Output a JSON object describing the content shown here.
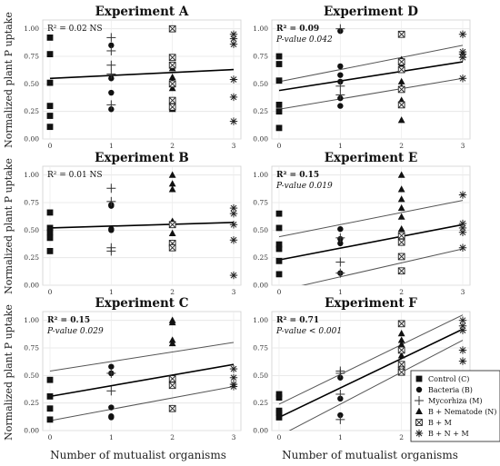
{
  "figure": {
    "ylabel": "Normalized plant P uptake",
    "xlabel": "Number of mutualist organisms",
    "legend": [
      {
        "key": "C",
        "label": "Control (C)"
      },
      {
        "key": "B",
        "label": "Bacteria (B)"
      },
      {
        "key": "M",
        "label": "Mycorhiza (M)"
      },
      {
        "key": "BN",
        "label": "B + Nematode (N)"
      },
      {
        "key": "BM",
        "label": "B + M"
      },
      {
        "key": "BNM",
        "label": "B + N + M"
      }
    ],
    "xticks": [
      "0",
      "1",
      "2",
      "3"
    ],
    "yticks": [
      "0.00",
      "0.25",
      "0.50",
      "0.75",
      "1.00"
    ]
  },
  "chart_data": [
    {
      "type": "scatter",
      "title": "Experiment A",
      "stats": {
        "r2_label": "R² = 0.02 NS",
        "r2_bold": false,
        "p_label": ""
      },
      "xlim": [
        0,
        3
      ],
      "ylim": [
        0,
        1.08
      ],
      "fit": {
        "start": 0.55,
        "end": 0.63
      },
      "ci": null,
      "series": [
        {
          "key": "C",
          "points": [
            [
              0,
              0.92
            ],
            [
              0,
              0.77
            ],
            [
              0,
              0.51
            ],
            [
              0,
              0.3
            ],
            [
              0,
              0.21
            ],
            [
              0,
              0.11
            ]
          ]
        },
        {
          "key": "B",
          "points": [
            [
              1,
              0.85
            ],
            [
              1,
              0.55
            ],
            [
              1,
              0.42
            ],
            [
              1,
              0.27
            ]
          ]
        },
        {
          "key": "M",
          "points": [
            [
              1,
              0.92
            ],
            [
              1,
              0.8
            ],
            [
              1,
              0.67
            ],
            [
              1,
              0.59
            ],
            [
              1,
              0.31
            ]
          ]
        },
        {
          "key": "BN",
          "points": [
            [
              2,
              0.64
            ],
            [
              2,
              0.56
            ],
            [
              2,
              0.52
            ],
            [
              2,
              0.46
            ],
            [
              2,
              0.3
            ],
            [
              2,
              0.27
            ]
          ]
        },
        {
          "key": "BM",
          "points": [
            [
              2,
              1.0
            ],
            [
              2,
              0.74
            ],
            [
              2,
              0.67
            ],
            [
              2,
              0.5
            ],
            [
              2,
              0.35
            ],
            [
              2,
              0.29
            ]
          ]
        },
        {
          "key": "BNM",
          "points": [
            [
              3,
              0.95
            ],
            [
              3,
              0.91
            ],
            [
              3,
              0.86
            ],
            [
              3,
              0.54
            ],
            [
              3,
              0.38
            ],
            [
              3,
              0.16
            ]
          ]
        }
      ]
    },
    {
      "type": "scatter",
      "title": "Experiment D",
      "stats": {
        "r2_label": "R² = 0.09",
        "r2_bold": true,
        "p_label": "P-value 0.042"
      },
      "xlim": [
        0,
        3
      ],
      "ylim": [
        0,
        1.08
      ],
      "fit": {
        "start": 0.44,
        "end": 0.7
      },
      "ci": {
        "lower": [
          0.27,
          0.55
        ],
        "upper": [
          0.52,
          0.85
        ]
      },
      "series": [
        {
          "key": "C",
          "points": [
            [
              0,
              0.75
            ],
            [
              0,
              0.68
            ],
            [
              0,
              0.53
            ],
            [
              0,
              0.31
            ],
            [
              0,
              0.25
            ],
            [
              0,
              0.1
            ]
          ]
        },
        {
          "key": "B",
          "points": [
            [
              1,
              0.98
            ],
            [
              1,
              0.66
            ],
            [
              1,
              0.58
            ],
            [
              1,
              0.52
            ],
            [
              1,
              0.37
            ],
            [
              1,
              0.3
            ]
          ]
        },
        {
          "key": "M",
          "points": [
            [
              1,
              1.0
            ],
            [
              1,
              0.48
            ],
            [
              1,
              0.4
            ]
          ]
        },
        {
          "key": "BN",
          "points": [
            [
              2,
              0.72
            ],
            [
              2,
              0.67
            ],
            [
              2,
              0.52
            ],
            [
              2,
              0.47
            ],
            [
              2,
              0.35
            ],
            [
              2,
              0.17
            ]
          ]
        },
        {
          "key": "BM",
          "points": [
            [
              2,
              0.95
            ],
            [
              2,
              0.7
            ],
            [
              2,
              0.63
            ],
            [
              2,
              0.45
            ],
            [
              2,
              0.31
            ]
          ]
        },
        {
          "key": "BNM",
          "points": [
            [
              3,
              0.95
            ],
            [
              3,
              0.79
            ],
            [
              3,
              0.77
            ],
            [
              3,
              0.74
            ],
            [
              3,
              0.55
            ]
          ]
        }
      ]
    },
    {
      "type": "scatter",
      "title": "Experiment B",
      "stats": {
        "r2_label": "R² = 0.01 NS",
        "r2_bold": false,
        "p_label": ""
      },
      "xlim": [
        0,
        3
      ],
      "ylim": [
        0,
        1.08
      ],
      "fit": {
        "start": 0.52,
        "end": 0.57
      },
      "ci": null,
      "series": [
        {
          "key": "C",
          "points": [
            [
              0,
              0.66
            ],
            [
              0,
              0.52
            ],
            [
              0,
              0.48
            ],
            [
              0,
              0.43
            ],
            [
              0,
              0.31
            ]
          ]
        },
        {
          "key": "B",
          "points": [
            [
              1,
              0.73
            ],
            [
              1,
              0.72
            ],
            [
              1,
              0.51
            ],
            [
              1,
              0.5
            ]
          ]
        },
        {
          "key": "M",
          "points": [
            [
              1,
              0.88
            ],
            [
              1,
              0.76
            ],
            [
              1,
              0.34
            ],
            [
              1,
              0.31
            ]
          ]
        },
        {
          "key": "BN",
          "points": [
            [
              2,
              1.0
            ],
            [
              2,
              0.92
            ],
            [
              2,
              0.87
            ],
            [
              2,
              0.58
            ],
            [
              2,
              0.47
            ]
          ]
        },
        {
          "key": "BM",
          "points": [
            [
              2,
              0.55
            ],
            [
              2,
              0.38
            ],
            [
              2,
              0.34
            ]
          ]
        },
        {
          "key": "BNM",
          "points": [
            [
              3,
              0.7
            ],
            [
              3,
              0.65
            ],
            [
              3,
              0.55
            ],
            [
              3,
              0.41
            ],
            [
              3,
              0.09
            ]
          ]
        }
      ]
    },
    {
      "type": "scatter",
      "title": "Experiment E",
      "stats": {
        "r2_label": "R² = 0.15",
        "r2_bold": true,
        "p_label": "P-value 0.019"
      },
      "xlim": [
        0,
        3
      ],
      "ylim": [
        0,
        1.08
      ],
      "fit": {
        "start": 0.23,
        "end": 0.55
      },
      "ci": {
        "lower": [
          -0.05,
          0.33
        ],
        "upper": [
          0.44,
          0.77
        ]
      },
      "series": [
        {
          "key": "C",
          "points": [
            [
              0,
              0.65
            ],
            [
              0,
              0.52
            ],
            [
              0,
              0.37
            ],
            [
              0,
              0.33
            ],
            [
              0,
              0.22
            ],
            [
              0,
              0.1
            ]
          ]
        },
        {
          "key": "B",
          "points": [
            [
              1,
              0.51
            ],
            [
              1,
              0.42
            ],
            [
              1,
              0.38
            ],
            [
              1,
              0.11
            ]
          ]
        },
        {
          "key": "M",
          "points": [
            [
              1,
              0.43
            ],
            [
              1,
              0.21
            ],
            [
              1,
              0.11
            ]
          ]
        },
        {
          "key": "BN",
          "points": [
            [
              2,
              1.0
            ],
            [
              2,
              0.87
            ],
            [
              2,
              0.78
            ],
            [
              2,
              0.7
            ],
            [
              2,
              0.62
            ],
            [
              2,
              0.51
            ]
          ]
        },
        {
          "key": "BM",
          "points": [
            [
              2,
              0.45
            ],
            [
              2,
              0.39
            ],
            [
              2,
              0.26
            ],
            [
              2,
              0.13
            ]
          ]
        },
        {
          "key": "BNM",
          "points": [
            [
              3,
              0.82
            ],
            [
              3,
              0.56
            ],
            [
              3,
              0.52
            ],
            [
              3,
              0.48
            ],
            [
              3,
              0.34
            ]
          ]
        }
      ]
    },
    {
      "type": "scatter",
      "title": "Experiment C",
      "stats": {
        "r2_label": "R² = 0.15",
        "r2_bold": true,
        "p_label": "P-value 0.029"
      },
      "xlim": [
        0,
        3
      ],
      "ylim": [
        0,
        1.08
      ],
      "fit": {
        "start": 0.31,
        "end": 0.6
      },
      "ci": {
        "lower": [
          0.09,
          0.4
        ],
        "upper": [
          0.54,
          0.8
        ]
      },
      "series": [
        {
          "key": "C",
          "points": [
            [
              0,
              0.46
            ],
            [
              0,
              0.31
            ],
            [
              0,
              0.2
            ],
            [
              0,
              0.1
            ]
          ]
        },
        {
          "key": "B",
          "points": [
            [
              1,
              0.58
            ],
            [
              1,
              0.52
            ],
            [
              1,
              0.21
            ],
            [
              1,
              0.13
            ],
            [
              1,
              0.12
            ]
          ]
        },
        {
          "key": "M",
          "points": [
            [
              1,
              0.52
            ],
            [
              1,
              0.36
            ]
          ]
        },
        {
          "key": "BN",
          "points": [
            [
              2,
              1.0
            ],
            [
              2,
              0.98
            ],
            [
              2,
              0.82
            ],
            [
              2,
              0.79
            ],
            [
              2,
              0.46
            ],
            [
              2,
              0.44
            ]
          ]
        },
        {
          "key": "BM",
          "points": [
            [
              2,
              0.47
            ],
            [
              2,
              0.41
            ],
            [
              2,
              0.2
            ]
          ]
        },
        {
          "key": "BNM",
          "points": [
            [
              3,
              0.56
            ],
            [
              3,
              0.48
            ],
            [
              3,
              0.42
            ],
            [
              3,
              0.4
            ]
          ]
        }
      ]
    },
    {
      "type": "scatter",
      "title": "Experiment F",
      "stats": {
        "r2_label": "R² = 0.71",
        "r2_bold": true,
        "p_label": "P-value < 0.001"
      },
      "xlim": [
        0,
        3
      ],
      "ylim": [
        0,
        1.08
      ],
      "fit": {
        "start": 0.12,
        "end": 0.92
      },
      "ci": {
        "lower": [
          -0.05,
          0.82
        ],
        "upper": [
          0.24,
          1.05
        ]
      },
      "series": [
        {
          "key": "C",
          "points": [
            [
              0,
              0.33
            ],
            [
              0,
              0.3
            ],
            [
              0,
              0.18
            ],
            [
              0,
              0.16
            ],
            [
              0,
              0.12
            ]
          ]
        },
        {
          "key": "B",
          "points": [
            [
              1,
              0.48
            ],
            [
              1,
              0.29
            ],
            [
              1,
              0.14
            ]
          ]
        },
        {
          "key": "M",
          "points": [
            [
              1,
              0.54
            ],
            [
              1,
              0.52
            ],
            [
              1,
              0.33
            ],
            [
              1,
              0.1
            ]
          ]
        },
        {
          "key": "BN",
          "points": [
            [
              2,
              0.88
            ],
            [
              2,
              0.82
            ],
            [
              2,
              0.78
            ],
            [
              2,
              0.76
            ],
            [
              2,
              0.68
            ],
            [
              2,
              0.56
            ]
          ]
        },
        {
          "key": "BM",
          "points": [
            [
              2,
              0.97
            ],
            [
              2,
              0.73
            ],
            [
              2,
              0.6
            ],
            [
              2,
              0.55
            ],
            [
              2,
              0.53
            ]
          ]
        },
        {
          "key": "BNM",
          "points": [
            [
              3,
              1.0
            ],
            [
              3,
              0.95
            ],
            [
              3,
              0.91
            ],
            [
              3,
              0.73
            ],
            [
              3,
              0.63
            ]
          ]
        }
      ]
    }
  ]
}
